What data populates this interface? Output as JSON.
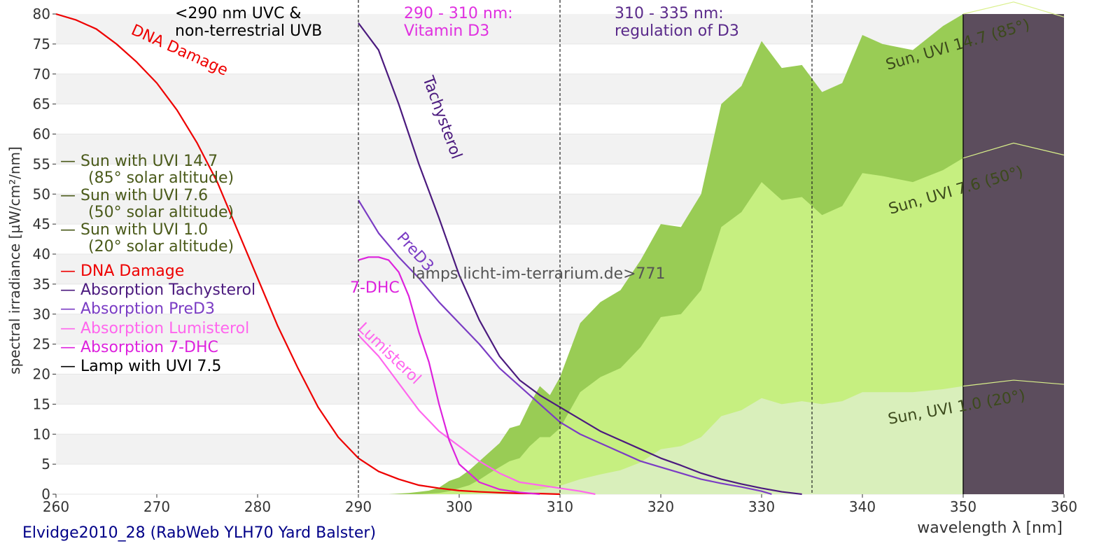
{
  "chart_data": {
    "type": "area",
    "title": "",
    "xlabel": "wavelength λ [nm]",
    "ylabel": "spectral irradiance [µW/cm²/nm]",
    "xlim": [
      260,
      360
    ],
    "ylim": [
      0,
      80
    ],
    "xticks": [
      260,
      270,
      280,
      290,
      300,
      310,
      320,
      330,
      340,
      350,
      360
    ],
    "yticks": [
      0,
      5,
      10,
      15,
      20,
      25,
      30,
      35,
      40,
      45,
      50,
      55,
      60,
      65,
      70,
      75,
      80
    ],
    "grid": "horizontal bands",
    "legend_position": "left",
    "footer": "Elvidge2010_28 (RabWeb YLH70 Yard Balster)",
    "watermark": "lamps.licht-im-terrarium.de>771",
    "regions": [
      {
        "x": 290,
        "label1": "<290 nm UVC &",
        "label2": "non-terrestrial UVB",
        "color": "#000000"
      },
      {
        "x": 310,
        "label1": "290 - 310 nm:",
        "label2": "Vitamin D3",
        "color": "#e030e0"
      },
      {
        "x": 335,
        "label1": "310 - 335 nm:",
        "label2": "regulation of D3",
        "color": "#5a2a8a"
      }
    ],
    "legend": [
      {
        "line1": "— Sun with UVI 14.7",
        "line2": "(85° solar altitude)",
        "color": "#4a5a1a"
      },
      {
        "line1": "— Sun with UVI 7.6",
        "line2": "(50° solar altitude)",
        "color": "#4a5a1a"
      },
      {
        "line1": "— Sun with UVI 1.0",
        "line2": "(20° solar altitude)",
        "color": "#4a5a1a"
      },
      {
        "line1": "— DNA Damage",
        "color": "#ee0000"
      },
      {
        "line1": "— Absorption Tachysterol",
        "color": "#4b1a7e"
      },
      {
        "line1": "— Absorption PreD3",
        "color": "#7b3cc4"
      },
      {
        "line1": "— Absorption Lumisterol",
        "color": "#ff66ee"
      },
      {
        "line1": "— Absorption 7-DHC",
        "color": "#dd22dd"
      },
      {
        "line1": "— Lamp with UVI 7.5",
        "color": "#000000"
      }
    ],
    "curve_labels": {
      "dna": "DNA Damage",
      "tachysterol": "Tachysterol",
      "pred3": "PreD3",
      "dhc": "7-DHC",
      "lumisterol": "Lumisterol",
      "sun147": "Sun, UVI 14.7 (85°)",
      "sun76": "Sun, UVI 7.6 (50°)",
      "sun10": "Sun, UVI 1.0 (20°)"
    },
    "series": [
      {
        "name": "Sun with UVI 14.7",
        "color": "#99cc55",
        "fill": true,
        "x": [
          293,
          295,
          296,
          297,
          298,
          299,
          300,
          301,
          302,
          303,
          304,
          305,
          306,
          307,
          308,
          309,
          310,
          312,
          314,
          316,
          318,
          320,
          322,
          324,
          326,
          328,
          330,
          332,
          334,
          336,
          338,
          340,
          342,
          345,
          348,
          350
        ],
        "y": [
          0,
          0.2,
          0.4,
          0.6,
          1.1,
          2.2,
          2.8,
          4,
          5.5,
          7,
          8.5,
          11,
          11.5,
          15,
          18,
          16.5,
          19.5,
          28.5,
          32,
          34,
          39,
          45,
          44.5,
          50,
          65,
          68,
          75.5,
          71,
          71.5,
          67,
          68.5,
          76.5,
          75,
          74,
          78,
          80
        ]
      },
      {
        "name": "Sun with UVI 7.6",
        "color": "#c6ef80",
        "fill": true,
        "x": [
          296,
          298,
          299,
          300,
          301,
          302,
          303,
          304,
          305,
          306,
          307,
          308,
          309,
          310,
          312,
          314,
          316,
          318,
          320,
          322,
          324,
          326,
          328,
          330,
          332,
          334,
          336,
          338,
          340,
          342,
          345,
          348,
          350
        ],
        "y": [
          0,
          0.2,
          0.5,
          1,
          1.5,
          2.4,
          3.5,
          4.5,
          5.5,
          6,
          8,
          9.5,
          9.5,
          11,
          17,
          19.5,
          21,
          24.5,
          29.5,
          30,
          34,
          44.5,
          47,
          52,
          49,
          49.5,
          46.5,
          48,
          53.5,
          53,
          52,
          54,
          56
        ]
      },
      {
        "name": "Sun with UVI 1.0",
        "color": "#d9efbb",
        "fill": true,
        "x": [
          300,
          302,
          304,
          306,
          308,
          310,
          312,
          314,
          316,
          318,
          320,
          322,
          324,
          326,
          328,
          330,
          332,
          334,
          336,
          338,
          340,
          342,
          345,
          348,
          350
        ],
        "y": [
          0,
          0.1,
          0.3,
          0.5,
          0.8,
          1.4,
          2.5,
          3.3,
          4,
          5.3,
          7.5,
          8,
          9.5,
          13,
          14,
          16,
          15,
          15.5,
          15,
          15.5,
          17,
          17,
          17,
          17.5,
          18
        ]
      },
      {
        "name": "Lamp with UVI 7.5",
        "color": "#5c4d5d",
        "fill": true,
        "x": [
          350,
          350,
          360,
          360
        ],
        "y": [
          0,
          80,
          80,
          0
        ]
      },
      {
        "name": "DNA Damage",
        "color": "#ee0000",
        "x": [
          260,
          262,
          264,
          266,
          268,
          270,
          272,
          274,
          276,
          278,
          280,
          282,
          284,
          286,
          288,
          290,
          292,
          294,
          296,
          298,
          300,
          302,
          304,
          306,
          308,
          310
        ],
        "y": [
          80,
          79,
          77.5,
          75,
          72,
          68.5,
          64,
          58.5,
          52,
          44,
          36,
          28,
          21,
          14.5,
          9.5,
          6,
          3.8,
          2.5,
          1.5,
          1,
          0.6,
          0.4,
          0.25,
          0.15,
          0.1,
          0
        ]
      },
      {
        "name": "Absorption Tachysterol",
        "color": "#4b1a7e",
        "x": [
          290,
          292,
          294,
          296,
          298,
          300,
          302,
          304,
          306,
          308,
          310,
          312,
          314,
          316,
          318,
          320,
          322,
          324,
          326,
          328,
          330,
          332,
          334
        ],
        "y": [
          78.5,
          74,
          65,
          55,
          46,
          36.5,
          29,
          23,
          19,
          16.5,
          14.5,
          12.5,
          10.5,
          9,
          7.5,
          6,
          4.8,
          3.5,
          2.5,
          1.7,
          1,
          0.4,
          0
        ]
      },
      {
        "name": "Absorption PreD3",
        "color": "#7b3cc4",
        "x": [
          290,
          292,
          294,
          296,
          298,
          300,
          302,
          304,
          306,
          308,
          310,
          312,
          314,
          316,
          318,
          320,
          322,
          324,
          326,
          328,
          330,
          331
        ],
        "y": [
          49,
          43.5,
          39.5,
          36,
          32,
          28.5,
          25,
          21,
          18,
          15,
          12,
          10,
          8.5,
          7,
          5.5,
          4.5,
          3.5,
          2.5,
          1.8,
          1.2,
          0.5,
          0
        ]
      },
      {
        "name": "Absorption Lumisterol",
        "color": "#ff66ee",
        "x": [
          290,
          292,
          294,
          296,
          298,
          300,
          302,
          304,
          306,
          308,
          310,
          312,
          313.5
        ],
        "y": [
          26.5,
          23,
          18.5,
          14,
          10.5,
          8,
          5.5,
          3.5,
          2,
          1.5,
          1,
          0.5,
          0
        ]
      },
      {
        "name": "Absorption 7-DHC",
        "color": "#dd22dd",
        "x": [
          290,
          291,
          292,
          293,
          294,
          295,
          296,
          297,
          298,
          299,
          300,
          301,
          302,
          304,
          306,
          308
        ],
        "y": [
          39,
          39.5,
          39.5,
          39,
          37,
          33,
          27,
          22,
          15,
          9,
          5,
          3.5,
          2,
          0.8,
          0.3,
          0
        ]
      }
    ]
  }
}
